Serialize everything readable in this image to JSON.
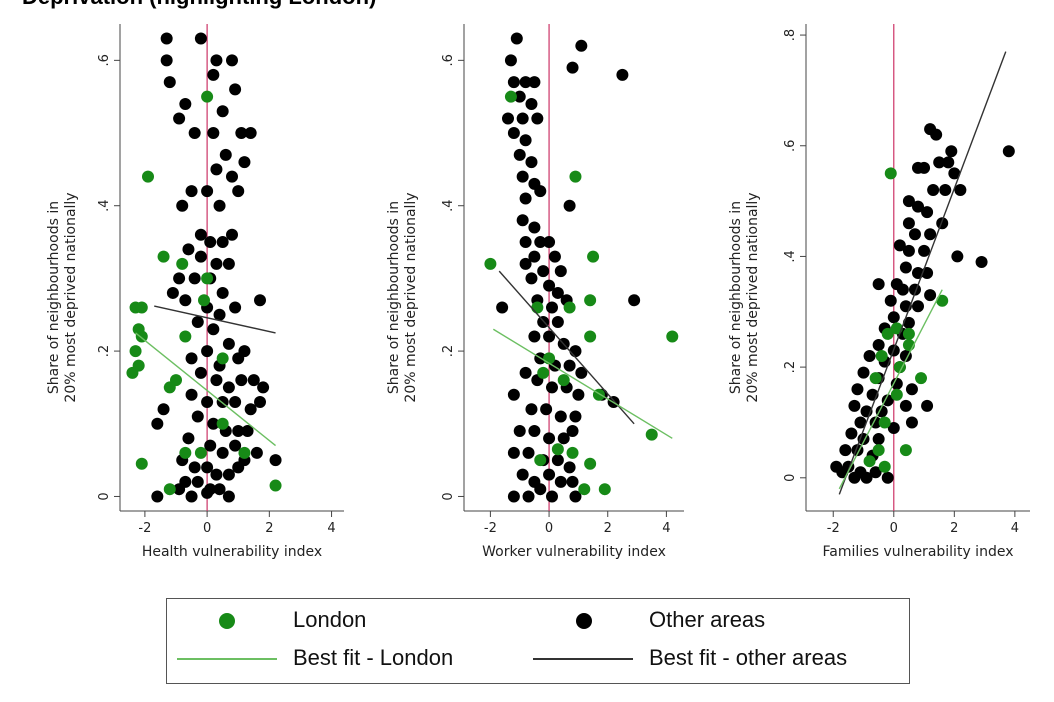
{
  "figure": {
    "title": "Deprivation (highlighting London)"
  },
  "colors": {
    "london": "#178a17",
    "other": "#000000",
    "london_fit": "#6cbf62",
    "other_fit": "#333333",
    "zero_line": "#cc3366"
  },
  "legend": {
    "london": "London",
    "other": "Other areas",
    "london_fit": "Best fit - London",
    "other_fit": "Best fit - other areas"
  },
  "chart_data": [
    {
      "type": "scatter",
      "xlabel": "Health vulnerability index",
      "ylabel": [
        "Share of neighbourhoods in",
        "20% most deprived nationally"
      ],
      "xlim": [
        -2.8,
        4.4
      ],
      "ylim": [
        -0.02,
        0.65
      ],
      "xticks": [
        -2,
        0,
        2,
        4
      ],
      "xtick_labels": [
        "-2",
        "0",
        "2",
        "4"
      ],
      "yticks": [
        0,
        0.2,
        0.4,
        0.6
      ],
      "ytick_labels": [
        "0",
        ".2",
        ".4",
        ".6"
      ],
      "reference_line_x": 0,
      "london_points": [
        [
          -2.3,
          0.26
        ],
        [
          -2.1,
          0.26
        ],
        [
          -2.2,
          0.23
        ],
        [
          -2.1,
          0.22
        ],
        [
          -2.3,
          0.2
        ],
        [
          -2.4,
          0.17
        ],
        [
          -2.2,
          0.18
        ],
        [
          -1.9,
          0.44
        ],
        [
          -1.4,
          0.33
        ],
        [
          -0.8,
          0.32
        ],
        [
          -0.7,
          0.22
        ],
        [
          -0.1,
          0.27
        ],
        [
          0,
          0.55
        ],
        [
          0,
          0.3
        ],
        [
          0.5,
          0.19
        ],
        [
          -1,
          0.16
        ],
        [
          -1.2,
          0.15
        ],
        [
          -0.7,
          0.06
        ],
        [
          -0.2,
          0.06
        ],
        [
          -1.2,
          0.01
        ],
        [
          -2.1,
          0.045
        ],
        [
          2.2,
          0.015
        ],
        [
          1.2,
          0.06
        ],
        [
          0.5,
          0.1
        ]
      ],
      "other_points": [
        [
          -1.3,
          0.63
        ],
        [
          -1.3,
          0.6
        ],
        [
          -1.2,
          0.57
        ],
        [
          -0.7,
          0.54
        ],
        [
          -0.2,
          0.63
        ],
        [
          0.2,
          0.58
        ],
        [
          0.3,
          0.6
        ],
        [
          0.8,
          0.6
        ],
        [
          0.9,
          0.56
        ],
        [
          0.5,
          0.53
        ],
        [
          -0.9,
          0.52
        ],
        [
          -0.4,
          0.5
        ],
        [
          0.2,
          0.5
        ],
        [
          0.6,
          0.47
        ],
        [
          1.1,
          0.5
        ],
        [
          1.4,
          0.5
        ],
        [
          1.2,
          0.46
        ],
        [
          0.8,
          0.44
        ],
        [
          0.3,
          0.45
        ],
        [
          -0.5,
          0.42
        ],
        [
          0,
          0.42
        ],
        [
          0.4,
          0.4
        ],
        [
          1,
          0.42
        ],
        [
          -0.8,
          0.4
        ],
        [
          -0.2,
          0.36
        ],
        [
          0.1,
          0.35
        ],
        [
          0.5,
          0.35
        ],
        [
          0.8,
          0.36
        ],
        [
          -0.6,
          0.34
        ],
        [
          -0.2,
          0.33
        ],
        [
          0.3,
          0.32
        ],
        [
          0.7,
          0.32
        ],
        [
          -0.9,
          0.3
        ],
        [
          -0.4,
          0.3
        ],
        [
          0.1,
          0.3
        ],
        [
          0.5,
          0.28
        ],
        [
          -1.1,
          0.28
        ],
        [
          -0.7,
          0.27
        ],
        [
          0,
          0.26
        ],
        [
          0.4,
          0.25
        ],
        [
          0.9,
          0.26
        ],
        [
          1.7,
          0.27
        ],
        [
          -0.3,
          0.24
        ],
        [
          0.2,
          0.23
        ],
        [
          0.7,
          0.21
        ],
        [
          -0.5,
          0.19
        ],
        [
          0,
          0.2
        ],
        [
          0.4,
          0.18
        ],
        [
          1,
          0.19
        ],
        [
          1.2,
          0.2
        ],
        [
          -0.2,
          0.17
        ],
        [
          0.3,
          0.16
        ],
        [
          0.7,
          0.15
        ],
        [
          1.1,
          0.16
        ],
        [
          1.5,
          0.16
        ],
        [
          1.8,
          0.15
        ],
        [
          -0.5,
          0.14
        ],
        [
          0,
          0.13
        ],
        [
          0.5,
          0.13
        ],
        [
          0.9,
          0.13
        ],
        [
          1.4,
          0.12
        ],
        [
          1.7,
          0.13
        ],
        [
          -1.4,
          0.12
        ],
        [
          -1.6,
          0.1
        ],
        [
          -0.3,
          0.11
        ],
        [
          0.2,
          0.1
        ],
        [
          0.6,
          0.09
        ],
        [
          1,
          0.09
        ],
        [
          1.3,
          0.09
        ],
        [
          -0.6,
          0.08
        ],
        [
          0.1,
          0.07
        ],
        [
          0.5,
          0.06
        ],
        [
          0.9,
          0.07
        ],
        [
          1.2,
          0.05
        ],
        [
          1.6,
          0.06
        ],
        [
          -0.8,
          0.05
        ],
        [
          -0.4,
          0.04
        ],
        [
          0,
          0.04
        ],
        [
          0.3,
          0.03
        ],
        [
          0.7,
          0.03
        ],
        [
          1,
          0.04
        ],
        [
          2.2,
          0.05
        ],
        [
          -0.7,
          0.02
        ],
        [
          -0.3,
          0.02
        ],
        [
          0.1,
          0.01
        ],
        [
          0.4,
          0.01
        ],
        [
          -1.6,
          0
        ],
        [
          -0.9,
          0.01
        ],
        [
          -0.5,
          0
        ],
        [
          0,
          0.005
        ],
        [
          0.7,
          0
        ]
      ],
      "london_fit": [
        [
          -2.3,
          0.225
        ],
        [
          2.2,
          0.07
        ]
      ],
      "other_fit": [
        [
          -1.7,
          0.262
        ],
        [
          2.2,
          0.225
        ]
      ]
    },
    {
      "type": "scatter",
      "xlabel": "Worker vulnerability index",
      "ylabel": [
        "Share of neighbourhoods in",
        "20% most deprived nationally"
      ],
      "xlim": [
        -2.9,
        4.6
      ],
      "ylim": [
        -0.02,
        0.65
      ],
      "xticks": [
        -2,
        0,
        2,
        4
      ],
      "xtick_labels": [
        "-2",
        "0",
        "2",
        "4"
      ],
      "yticks": [
        0,
        0.2,
        0.4,
        0.6
      ],
      "ytick_labels": [
        "0",
        ".2",
        ".4",
        ".6"
      ],
      "reference_line_x": 0,
      "london_points": [
        [
          -2,
          0.32
        ],
        [
          -1.3,
          0.55
        ],
        [
          0.9,
          0.44
        ],
        [
          1.5,
          0.33
        ],
        [
          -0.4,
          0.26
        ],
        [
          0.7,
          0.26
        ],
        [
          1.4,
          0.27
        ],
        [
          1.4,
          0.22
        ],
        [
          0,
          0.19
        ],
        [
          -0.2,
          0.17
        ],
        [
          0.5,
          0.16
        ],
        [
          1.7,
          0.14
        ],
        [
          3.5,
          0.085
        ],
        [
          4.2,
          0.22
        ],
        [
          0.3,
          0.065
        ],
        [
          0.8,
          0.06
        ],
        [
          -0.3,
          0.05
        ],
        [
          1.4,
          0.045
        ],
        [
          1.9,
          0.01
        ],
        [
          1.2,
          0.01
        ]
      ],
      "other_points": [
        [
          -1.1,
          0.63
        ],
        [
          0.8,
          0.59
        ],
        [
          1.1,
          0.62
        ],
        [
          2.5,
          0.58
        ],
        [
          -1.3,
          0.6
        ],
        [
          -1.2,
          0.57
        ],
        [
          -0.8,
          0.57
        ],
        [
          -0.5,
          0.57
        ],
        [
          -1,
          0.55
        ],
        [
          -0.6,
          0.54
        ],
        [
          -1.4,
          0.52
        ],
        [
          -0.9,
          0.52
        ],
        [
          -0.4,
          0.52
        ],
        [
          -1.2,
          0.5
        ],
        [
          -0.8,
          0.49
        ],
        [
          -1,
          0.47
        ],
        [
          -0.6,
          0.46
        ],
        [
          -0.9,
          0.44
        ],
        [
          -0.5,
          0.43
        ],
        [
          -0.8,
          0.41
        ],
        [
          -0.3,
          0.42
        ],
        [
          0.7,
          0.4
        ],
        [
          -0.9,
          0.38
        ],
        [
          -0.5,
          0.37
        ],
        [
          -0.8,
          0.35
        ],
        [
          -0.3,
          0.35
        ],
        [
          0,
          0.35
        ],
        [
          -0.5,
          0.33
        ],
        [
          0.2,
          0.33
        ],
        [
          -0.8,
          0.32
        ],
        [
          -0.2,
          0.31
        ],
        [
          0.4,
          0.31
        ],
        [
          -0.6,
          0.3
        ],
        [
          0,
          0.29
        ],
        [
          0.3,
          0.28
        ],
        [
          -0.4,
          0.27
        ],
        [
          0.1,
          0.26
        ],
        [
          0.6,
          0.27
        ],
        [
          -1.6,
          0.26
        ],
        [
          2.9,
          0.27
        ],
        [
          -0.2,
          0.24
        ],
        [
          0.3,
          0.24
        ],
        [
          -0.5,
          0.22
        ],
        [
          0,
          0.22
        ],
        [
          0.5,
          0.21
        ],
        [
          0.9,
          0.2
        ],
        [
          -0.3,
          0.19
        ],
        [
          0.2,
          0.18
        ],
        [
          0.7,
          0.18
        ],
        [
          1.1,
          0.17
        ],
        [
          -0.8,
          0.17
        ],
        [
          -0.4,
          0.16
        ],
        [
          0.1,
          0.15
        ],
        [
          0.6,
          0.15
        ],
        [
          1,
          0.14
        ],
        [
          1.8,
          0.14
        ],
        [
          2.2,
          0.13
        ],
        [
          -1.2,
          0.14
        ],
        [
          -0.6,
          0.12
        ],
        [
          -0.1,
          0.12
        ],
        [
          0.4,
          0.11
        ],
        [
          0.9,
          0.11
        ],
        [
          -1,
          0.09
        ],
        [
          -0.5,
          0.09
        ],
        [
          0,
          0.08
        ],
        [
          0.5,
          0.08
        ],
        [
          0.8,
          0.09
        ],
        [
          -1.2,
          0.06
        ],
        [
          -0.7,
          0.06
        ],
        [
          -0.2,
          0.05
        ],
        [
          0.3,
          0.05
        ],
        [
          0.7,
          0.04
        ],
        [
          -0.9,
          0.03
        ],
        [
          -0.5,
          0.02
        ],
        [
          0,
          0.03
        ],
        [
          0.4,
          0.02
        ],
        [
          0.8,
          0.02
        ],
        [
          -1.2,
          0
        ],
        [
          -0.7,
          0
        ],
        [
          -0.3,
          0.01
        ],
        [
          0.1,
          0
        ],
        [
          0.9,
          0
        ]
      ],
      "london_fit": [
        [
          -1.9,
          0.23
        ],
        [
          4.2,
          0.08
        ]
      ],
      "other_fit": [
        [
          -1.7,
          0.31
        ],
        [
          2.9,
          0.1
        ]
      ]
    },
    {
      "type": "scatter",
      "xlabel": "Families vulnerability index",
      "ylabel": [
        "Share of neighbourhoods in",
        "20% most deprived nationally"
      ],
      "xlim": [
        -2.9,
        4.5
      ],
      "ylim": [
        -0.06,
        0.82
      ],
      "xticks": [
        -2,
        0,
        2,
        4
      ],
      "xtick_labels": [
        "-2",
        "0",
        "2",
        "4"
      ],
      "yticks": [
        0,
        0.2,
        0.4,
        0.6,
        0.8
      ],
      "ytick_labels": [
        "0",
        ".2",
        ".4",
        ".6",
        ".8"
      ],
      "reference_line_x": 0,
      "london_points": [
        [
          -0.1,
          0.55
        ],
        [
          1.6,
          0.32
        ],
        [
          0.1,
          0.27
        ],
        [
          -0.2,
          0.26
        ],
        [
          0.5,
          0.24
        ],
        [
          -0.4,
          0.22
        ],
        [
          0.2,
          0.2
        ],
        [
          -0.6,
          0.18
        ],
        [
          0.9,
          0.18
        ],
        [
          0.1,
          0.15
        ],
        [
          -0.3,
          0.1
        ],
        [
          0.4,
          0.05
        ],
        [
          -0.5,
          0.05
        ],
        [
          -0.8,
          0.03
        ],
        [
          -0.3,
          0.02
        ],
        [
          0.5,
          0.26
        ]
      ],
      "other_points": [
        [
          1.2,
          0.63
        ],
        [
          1.4,
          0.62
        ],
        [
          1.9,
          0.59
        ],
        [
          1.5,
          0.57
        ],
        [
          1.8,
          0.57
        ],
        [
          2,
          0.55
        ],
        [
          0.8,
          0.56
        ],
        [
          1,
          0.56
        ],
        [
          3.8,
          0.59
        ],
        [
          2.2,
          0.52
        ],
        [
          1.3,
          0.52
        ],
        [
          1.7,
          0.52
        ],
        [
          0.5,
          0.5
        ],
        [
          0.8,
          0.49
        ],
        [
          1.1,
          0.48
        ],
        [
          1.6,
          0.46
        ],
        [
          0.5,
          0.46
        ],
        [
          0.7,
          0.44
        ],
        [
          1.2,
          0.44
        ],
        [
          0.2,
          0.42
        ],
        [
          0.5,
          0.41
        ],
        [
          1,
          0.41
        ],
        [
          2.1,
          0.4
        ],
        [
          2.9,
          0.39
        ],
        [
          0.4,
          0.38
        ],
        [
          0.8,
          0.37
        ],
        [
          1.1,
          0.37
        ],
        [
          0.1,
          0.35
        ],
        [
          -0.5,
          0.35
        ],
        [
          0.3,
          0.34
        ],
        [
          0.7,
          0.34
        ],
        [
          1.2,
          0.33
        ],
        [
          -0.1,
          0.32
        ],
        [
          0.4,
          0.31
        ],
        [
          0.8,
          0.31
        ],
        [
          0,
          0.29
        ],
        [
          0.5,
          0.28
        ],
        [
          -0.3,
          0.27
        ],
        [
          0.3,
          0.26
        ],
        [
          -0.5,
          0.24
        ],
        [
          0,
          0.23
        ],
        [
          0.4,
          0.22
        ],
        [
          -0.8,
          0.22
        ],
        [
          -0.3,
          0.21
        ],
        [
          0.2,
          0.2
        ],
        [
          -1,
          0.19
        ],
        [
          -0.5,
          0.18
        ],
        [
          0.1,
          0.17
        ],
        [
          0.6,
          0.16
        ],
        [
          -1.2,
          0.16
        ],
        [
          -0.7,
          0.15
        ],
        [
          -0.2,
          0.14
        ],
        [
          0.4,
          0.13
        ],
        [
          -1.3,
          0.13
        ],
        [
          -0.9,
          0.12
        ],
        [
          -0.4,
          0.12
        ],
        [
          1.1,
          0.13
        ],
        [
          -1.1,
          0.1
        ],
        [
          -0.6,
          0.1
        ],
        [
          0,
          0.09
        ],
        [
          0.6,
          0.1
        ],
        [
          -1.4,
          0.08
        ],
        [
          -1,
          0.07
        ],
        [
          -0.5,
          0.07
        ],
        [
          -1.6,
          0.05
        ],
        [
          -1.2,
          0.05
        ],
        [
          -0.7,
          0.04
        ],
        [
          -1.9,
          0.02
        ],
        [
          -1.5,
          0.02
        ],
        [
          -1.1,
          0.01
        ],
        [
          -0.6,
          0.01
        ],
        [
          -0.2,
          0
        ],
        [
          -1.7,
          0.01
        ],
        [
          -1.3,
          0
        ],
        [
          -0.9,
          0
        ]
      ],
      "london_fit": [
        [
          -1.8,
          -0.02
        ],
        [
          1.6,
          0.34
        ]
      ],
      "other_fit": [
        [
          -1.8,
          -0.03
        ],
        [
          3.7,
          0.77
        ]
      ]
    }
  ]
}
